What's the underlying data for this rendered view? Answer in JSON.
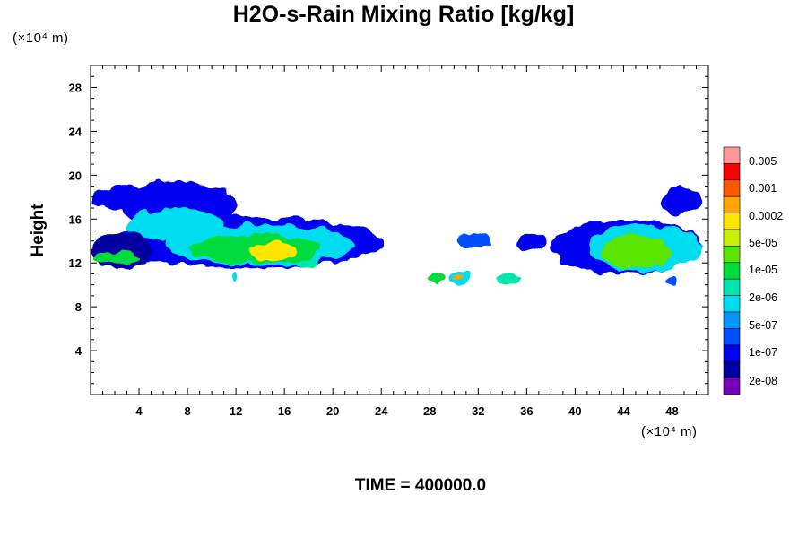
{
  "chart_data": {
    "type": "heatmap",
    "title": "H2O-s-Rain Mixing Ratio [kg/kg]",
    "xlabel": "",
    "ylabel": "Height",
    "x_unit": "(×10⁴ m)",
    "y_unit": "(×10⁴ m)",
    "xlim": [
      0,
      51
    ],
    "ylim": [
      0,
      30
    ],
    "x_ticks": [
      4,
      8,
      12,
      16,
      20,
      24,
      28,
      32,
      36,
      40,
      44,
      48
    ],
    "y_ticks": [
      4,
      8,
      12,
      16,
      20,
      24,
      28
    ],
    "colorbar": {
      "labels": [
        "0.005",
        "0.001",
        "0.0002",
        "5e-05",
        "1e-05",
        "2e-06",
        "5e-07",
        "1e-07",
        "2e-08"
      ],
      "colors": [
        "#ff9999",
        "#ff0000",
        "#ff5a00",
        "#ffa500",
        "#ffe600",
        "#c8f000",
        "#5ae600",
        "#00dc3c",
        "#00e6aa",
        "#00dcf0",
        "#0096ff",
        "#0050ff",
        "#0000f0",
        "#0000a0",
        "#7800b4"
      ]
    },
    "regions": [
      {
        "x": [
          0,
          7
        ],
        "y": [
          16.8,
          19
        ],
        "level": 12
      },
      {
        "x": [
          2.5,
          12
        ],
        "y": [
          15,
          19.5
        ],
        "level": 12
      },
      {
        "x": [
          1.5,
          24
        ],
        "y": [
          11.5,
          16.2
        ],
        "level": 12
      },
      {
        "x": [
          0,
          5
        ],
        "y": [
          11.5,
          14.8
        ],
        "level": 13
      },
      {
        "x": [
          3,
          11
        ],
        "y": [
          14,
          17
        ],
        "level": 9
      },
      {
        "x": [
          6,
          22
        ],
        "y": [
          11.8,
          15.5
        ],
        "level": 9
      },
      {
        "x": [
          8,
          19
        ],
        "y": [
          12,
          14.6
        ],
        "level": 7
      },
      {
        "x": [
          13,
          17
        ],
        "y": [
          12.2,
          13.8
        ],
        "level": 4
      },
      {
        "x": [
          0,
          4
        ],
        "y": [
          12,
          13
        ],
        "level": 7
      },
      {
        "x": [
          11.5,
          12
        ],
        "y": [
          10.3,
          11
        ],
        "level": 9
      },
      {
        "x": [
          17,
          19
        ],
        "y": [
          11.5,
          12.5
        ],
        "level": 8
      },
      {
        "x": [
          30,
          33
        ],
        "y": [
          13.4,
          14.6
        ],
        "level": 11
      },
      {
        "x": [
          35,
          37.5
        ],
        "y": [
          13,
          14.6
        ],
        "level": 12
      },
      {
        "x": [
          28,
          29
        ],
        "y": [
          10.2,
          11
        ],
        "level": 7
      },
      {
        "x": [
          29.5,
          31.5
        ],
        "y": [
          10,
          11.2
        ],
        "level": 9
      },
      {
        "x": [
          30,
          31
        ],
        "y": [
          10.3,
          10.8
        ],
        "level": 3
      },
      {
        "x": [
          33.5,
          35.5
        ],
        "y": [
          10,
          11
        ],
        "level": 8
      },
      {
        "x": [
          38,
          50.5
        ],
        "y": [
          11,
          16
        ],
        "level": 12
      },
      {
        "x": [
          41,
          50.5
        ],
        "y": [
          11.2,
          15.5
        ],
        "level": 9
      },
      {
        "x": [
          42,
          48
        ],
        "y": [
          11.5,
          14.5
        ],
        "level": 6
      },
      {
        "x": [
          47,
          50.5
        ],
        "y": [
          16.5,
          19
        ],
        "level": 12
      },
      {
        "x": [
          47.5,
          48.5
        ],
        "y": [
          10,
          10.8
        ],
        "level": 11
      }
    ],
    "caption": "TIME = 400000.0"
  }
}
